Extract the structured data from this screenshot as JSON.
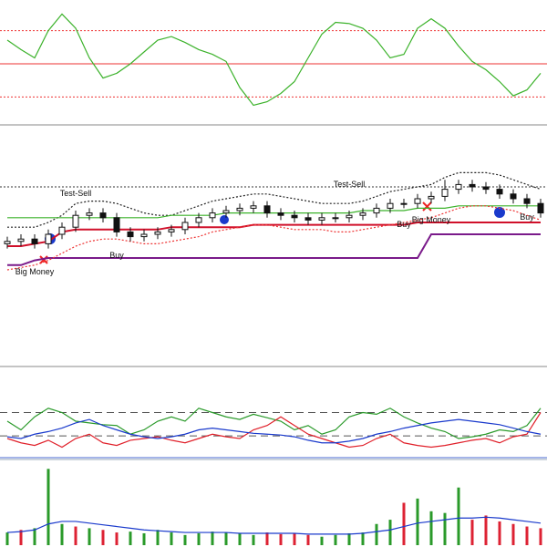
{
  "chart_data": [
    {
      "type": "line",
      "ylim": [
        0,
        100
      ],
      "levels": [
        {
          "value": 50,
          "color": "#e33",
          "style": "solid"
        },
        {
          "value": 78,
          "color": "#e33",
          "style": "dotted"
        },
        {
          "value": 22,
          "color": "#e33",
          "style": "dotted"
        }
      ],
      "series": [
        {
          "color": "#3bb22a",
          "style": "solid",
          "values": [
            70,
            62,
            55,
            78,
            92,
            80,
            55,
            38,
            42,
            50,
            60,
            70,
            73,
            68,
            62,
            58,
            52,
            30,
            15,
            18,
            25,
            35,
            55,
            75,
            85,
            84,
            80,
            70,
            55,
            58,
            80,
            88,
            80,
            65,
            52,
            45,
            35,
            23,
            28,
            42
          ]
        }
      ]
    },
    {
      "type": "candlestick",
      "ylim": [
        0,
        100
      ],
      "levels": [
        {
          "value": 75,
          "color": "#333",
          "style": "dotted"
        }
      ],
      "series": [
        {
          "color": "#222",
          "style": "dotted",
          "values": [
            58,
            58,
            58,
            60,
            63,
            68,
            69,
            69,
            68,
            66,
            64,
            63,
            63,
            65,
            67,
            69,
            70,
            71,
            72,
            72,
            71,
            70,
            69,
            68,
            68,
            68,
            69,
            71,
            73,
            74,
            75,
            76,
            79,
            81,
            81,
            81,
            80,
            78,
            76,
            74
          ]
        },
        {
          "color": "#3bb22a",
          "style": "solid",
          "values": [
            62,
            62,
            62,
            62,
            62,
            62,
            62,
            62,
            62,
            62,
            62,
            62,
            63,
            63,
            63,
            63,
            64,
            64,
            64,
            64,
            64,
            64,
            64,
            64,
            64,
            64,
            65,
            65,
            65,
            65,
            66,
            66,
            66,
            67,
            67,
            67,
            67,
            67,
            67,
            67
          ]
        },
        {
          "color": "#d0102a",
          "style": "thick",
          "values": [
            50,
            50,
            51,
            52,
            56,
            57,
            57,
            57,
            57,
            57,
            57,
            57,
            58,
            58,
            58,
            58,
            58,
            58,
            59,
            59,
            59,
            59,
            59,
            59,
            59,
            59,
            59,
            59,
            59,
            59,
            60,
            60,
            60,
            60,
            60,
            60,
            60,
            60,
            60,
            60
          ]
        },
        {
          "color": "#7a1a8a",
          "style": "thick",
          "values": [
            42,
            42,
            44,
            45,
            45,
            45,
            45,
            45,
            45,
            45,
            45,
            45,
            45,
            45,
            45,
            45,
            45,
            45,
            45,
            45,
            45,
            45,
            45,
            45,
            45,
            45,
            45,
            45,
            45,
            45,
            45,
            55,
            55,
            55,
            55,
            55,
            55,
            55,
            55,
            55
          ]
        },
        {
          "color": "#e33",
          "style": "dotted",
          "values": [
            40,
            41,
            42,
            44,
            47,
            50,
            52,
            53,
            53,
            52,
            51,
            51,
            52,
            53,
            54,
            56,
            57,
            58,
            59,
            59,
            58,
            57,
            57,
            57,
            56,
            56,
            57,
            58,
            59,
            60,
            61,
            62,
            64,
            66,
            67,
            67,
            66,
            65,
            63,
            61
          ]
        }
      ],
      "candles": [
        [
          51,
          54,
          49,
          52
        ],
        [
          52,
          55,
          50,
          53
        ],
        [
          53,
          55,
          49,
          51
        ],
        [
          51,
          57,
          49,
          55
        ],
        [
          55,
          60,
          53,
          58
        ],
        [
          58,
          65,
          56,
          63
        ],
        [
          63,
          66,
          61,
          64
        ],
        [
          64,
          66,
          60,
          62
        ],
        [
          62,
          64,
          54,
          56
        ],
        [
          56,
          58,
          52,
          54
        ],
        [
          54,
          57,
          52,
          55
        ],
        [
          55,
          58,
          53,
          56
        ],
        [
          56,
          59,
          54,
          57
        ],
        [
          57,
          62,
          55,
          60
        ],
        [
          60,
          64,
          58,
          62
        ],
        [
          62,
          66,
          60,
          64
        ],
        [
          64,
          67,
          62,
          65
        ],
        [
          65,
          68,
          63,
          66
        ],
        [
          66,
          69,
          64,
          67
        ],
        [
          67,
          69,
          62,
          64
        ],
        [
          64,
          66,
          61,
          63
        ],
        [
          63,
          65,
          60,
          62
        ],
        [
          62,
          64,
          59,
          61
        ],
        [
          61,
          64,
          59,
          62
        ],
        [
          62,
          64,
          60,
          62
        ],
        [
          62,
          65,
          60,
          63
        ],
        [
          63,
          66,
          61,
          64
        ],
        [
          64,
          68,
          62,
          66
        ],
        [
          66,
          70,
          64,
          68
        ],
        [
          68,
          70,
          66,
          68
        ],
        [
          68,
          72,
          66,
          70
        ],
        [
          70,
          73,
          68,
          71
        ],
        [
          71,
          78,
          69,
          74
        ],
        [
          74,
          78,
          72,
          76
        ],
        [
          76,
          78,
          73,
          75
        ],
        [
          75,
          77,
          72,
          74
        ],
        [
          74,
          76,
          70,
          72
        ],
        [
          72,
          74,
          68,
          70
        ],
        [
          70,
          72,
          66,
          68
        ],
        [
          68,
          70,
          62,
          64
        ]
      ],
      "annotations": [
        {
          "text": "Test-Sell",
          "x": 5,
          "y": 72
        },
        {
          "text": "Big Money",
          "x": 2,
          "y": 39
        },
        {
          "text": "Buy",
          "x": 8,
          "y": 46
        },
        {
          "text": "Test-Sell",
          "x": 25,
          "y": 76
        },
        {
          "text": "Buy",
          "x": 29,
          "y": 59
        },
        {
          "text": "Big Money",
          "x": 31,
          "y": 61
        },
        {
          "text": "Buy",
          "x": 38,
          "y": 62
        }
      ]
    },
    {
      "type": "line",
      "ylim": [
        0,
        100
      ],
      "levels": [
        {
          "value": 50,
          "color": "#555",
          "style": "dashed"
        },
        {
          "value": 23,
          "color": "#555",
          "style": "dashed"
        }
      ],
      "series": [
        {
          "color": "#2a9a2a",
          "style": "solid",
          "values": [
            40,
            30,
            45,
            55,
            50,
            40,
            38,
            36,
            35,
            25,
            30,
            40,
            45,
            40,
            55,
            50,
            45,
            42,
            48,
            44,
            40,
            30,
            35,
            25,
            30,
            45,
            50,
            48,
            55,
            45,
            38,
            32,
            28,
            20,
            22,
            25,
            30,
            28,
            35,
            55
          ]
        },
        {
          "color": "#e0202a",
          "style": "solid",
          "values": [
            20,
            15,
            12,
            18,
            10,
            20,
            25,
            15,
            12,
            18,
            20,
            22,
            18,
            15,
            20,
            25,
            22,
            20,
            30,
            35,
            45,
            35,
            25,
            20,
            15,
            10,
            12,
            20,
            25,
            15,
            12,
            10,
            12,
            15,
            18,
            20,
            15,
            22,
            25,
            50
          ]
        },
        {
          "color": "#1a3acc",
          "style": "solid",
          "values": [
            22,
            20,
            25,
            28,
            32,
            38,
            42,
            35,
            30,
            25,
            22,
            20,
            22,
            25,
            30,
            32,
            30,
            28,
            26,
            25,
            24,
            22,
            18,
            15,
            15,
            17,
            20,
            25,
            28,
            32,
            35,
            38,
            40,
            42,
            40,
            38,
            36,
            32,
            28,
            25
          ]
        }
      ]
    },
    {
      "type": "bar",
      "ylim": [
        0,
        100
      ],
      "values": [
        15,
        18,
        20,
        90,
        25,
        22,
        20,
        18,
        15,
        16,
        14,
        18,
        15,
        12,
        14,
        16,
        15,
        14,
        12,
        15,
        13,
        14,
        12,
        10,
        12,
        14,
        15,
        25,
        30,
        50,
        55,
        40,
        38,
        68,
        30,
        35,
        28,
        25,
        22,
        20
      ],
      "colors": [
        "#2a9a2a",
        "#dd2233",
        "#2a9a2a",
        "#2a9a2a",
        "#2a9a2a",
        "#dd2233",
        "#2a9a2a",
        "#dd2233",
        "#dd2233",
        "#2a9a2a",
        "#2a9a2a",
        "#2a9a2a",
        "#2a9a2a",
        "#2a9a2a",
        "#2a9a2a",
        "#2a9a2a",
        "#2a9a2a",
        "#2a9a2a",
        "#2a9a2a",
        "#dd2233",
        "#dd2233",
        "#dd2233",
        "#dd2233",
        "#2a9a2a",
        "#2a9a2a",
        "#2a9a2a",
        "#2a9a2a",
        "#2a9a2a",
        "#2a9a2a",
        "#dd2233",
        "#2a9a2a",
        "#2a9a2a",
        "#2a9a2a",
        "#2a9a2a",
        "#dd2233",
        "#dd2233",
        "#dd2233",
        "#dd2233",
        "#dd2233",
        "#dd2233"
      ],
      "series": [
        {
          "color": "#1a3acc",
          "style": "solid",
          "values": [
            15,
            16,
            18,
            25,
            28,
            28,
            26,
            24,
            22,
            20,
            18,
            17,
            16,
            15,
            15,
            15,
            15,
            14,
            14,
            14,
            14,
            14,
            13,
            13,
            13,
            13,
            14,
            16,
            18,
            22,
            26,
            28,
            30,
            32,
            32,
            33,
            32,
            30,
            28,
            26
          ]
        }
      ]
    }
  ]
}
